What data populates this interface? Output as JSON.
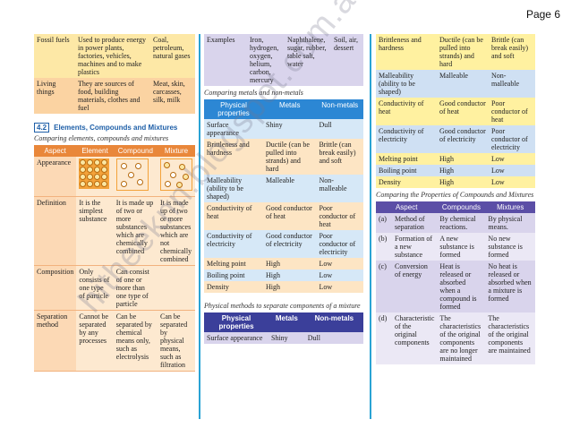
{
  "page_label": "Page 6",
  "col1_top": {
    "rows": [
      {
        "name": "Fossil fuels",
        "use": "Used to produce energy in power plants, factories, vehicles, machines and to make plastics",
        "example": "Coal, petroleum, natural gases"
      },
      {
        "name": "Living things",
        "use": "They are sources of food, building materials, clothes and fuel",
        "example": "Meat, skin, carcasses, silk, milk"
      }
    ]
  },
  "section": {
    "number": "4.2",
    "title": "Elements, Compounds and Mixtures"
  },
  "compare_caption": "Comparing elements, compounds and mixtures",
  "compare": {
    "headers": [
      "Aspect",
      "Element",
      "Compound",
      "Mixture"
    ],
    "appearance_label": "Appearance",
    "rows": [
      {
        "aspect": "Definition",
        "element": "It is the simplest substance",
        "compound": "It is made up of two or more substances which are chemically combined",
        "mixture": "It is made up of two or more substances which are not chemically combined"
      },
      {
        "aspect": "Composition",
        "element": "Only consists of one type of particle",
        "compound": "Can consist of one or more than one type of particle",
        "mixture": ""
      },
      {
        "aspect": "Separation method",
        "element": "Cannot be separated by any processes",
        "compound": "Can be separated by chemical means only, such as electrolysis",
        "mixture": "Can be separated by physical means, such as filtration"
      }
    ]
  },
  "col2": {
    "examples_label": "Examples",
    "examples": [
      "Iron, hydrogen, oxygen, helium, carbon, mercury",
      "Naphthalene, sugar, rubber, table salt, water",
      "Soil, air, dessert"
    ],
    "caption1": "Comparing metals and non-metals",
    "table1_headers": [
      "Physical properties",
      "Metals",
      "Non-metals"
    ],
    "table1_rows": [
      [
        "Surface appearance",
        "Shiny",
        "Dull"
      ],
      [
        "Brittleness and hardness",
        "Ductile (can be pulled into strands) and hard",
        "Brittle (can break easily) and soft"
      ],
      [
        "Malleability (ability to be shaped)",
        "Malleable",
        "Non-malleable"
      ],
      [
        "Conductivity of heat",
        "Good conductor of heat",
        "Poor conductor of heat"
      ],
      [
        "Conductivity of electricity",
        "Good conductor of electricity",
        "Poor conductor of electricity"
      ],
      [
        "Melting point",
        "High",
        "Low"
      ],
      [
        "Boiling point",
        "High",
        "Low"
      ],
      [
        "Density",
        "High",
        "Low"
      ]
    ],
    "caption2": "Physical methods to separate components of a mixture",
    "table2_headers": [
      "Physical properties",
      "Metals",
      "Non-metals"
    ],
    "table2_rows": [
      [
        "Surface appearance",
        "Shiny",
        "Dull"
      ]
    ]
  },
  "col3": {
    "table_rows": [
      [
        "Brittleness and hardness",
        "Ductile (can be pulled into strands) and hard",
        "Brittle (can break easily) and soft"
      ],
      [
        "Malleability (ability to be shaped)",
        "Malleable",
        "Non-malleable"
      ],
      [
        "Conductivity of heat",
        "Good conductor of heat",
        "Poor conductor of heat"
      ],
      [
        "Conductivity of electricity",
        "Good conductor of electricity",
        "Poor conductor of electricity"
      ],
      [
        "Melting point",
        "High",
        "Low"
      ],
      [
        "Boiling point",
        "High",
        "Low"
      ],
      [
        "Density",
        "High",
        "Low"
      ]
    ],
    "caption": "Comparing the Properties of Compounds and Mixtures",
    "cm_headers": [
      "Aspect",
      "Compounds",
      "Mixtures"
    ],
    "cm_rows": [
      {
        "idx": "(a)",
        "aspect": "Method of separation",
        "compounds": "By chemical reactions.",
        "mixtures": "By physical means."
      },
      {
        "idx": "(b)",
        "aspect": "Formation of a new substance",
        "compounds": "A new substance is formed",
        "mixtures": "No new substance is formed"
      },
      {
        "idx": "(c)",
        "aspect": "Conversion of energy",
        "compounds": "Heat is released or absorbed when a compound is formed",
        "mixtures": "No heat is released or absorbed when a mixture is formed"
      },
      {
        "idx": "(d)",
        "aspect": "Characteristic of the original components",
        "compounds": "The characteristics of the original components are no longer maintained",
        "mixtures": "The characteristics of the original components are maintained"
      }
    ]
  },
  "watermark": "hitheeknn.blogspot.com.au"
}
